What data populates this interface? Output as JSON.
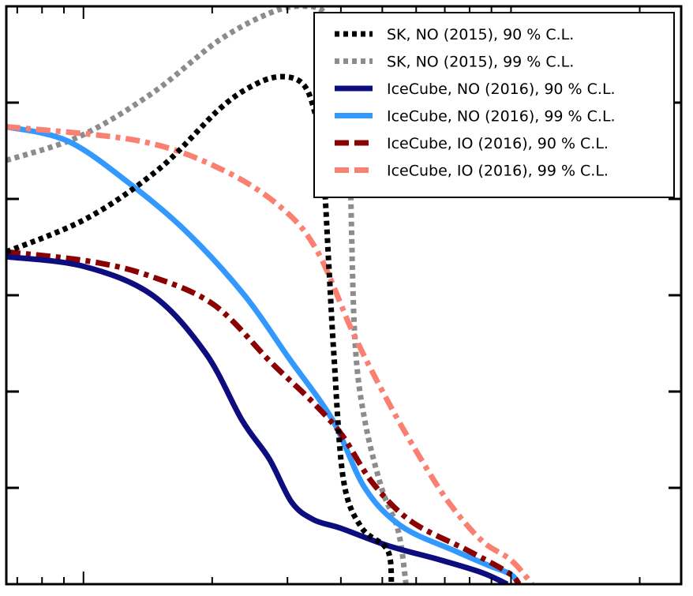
{
  "chart_data": {
    "type": "line",
    "title": "",
    "xlabel": "",
    "ylabel": "",
    "x_scale": "log",
    "xlim": [
      0.0066,
      0.25
    ],
    "ylim": [
      0,
      6
    ],
    "x_tick_labels_visible": [
      "",
      "",
      ""
    ],
    "grid": false,
    "legend_position": "top-right",
    "series": [
      {
        "name": "SK, NO (2015), 90 % C.L.",
        "color": "#000000",
        "style": "dotted",
        "points": [
          [
            0.0066,
            3.45
          ],
          [
            0.0102,
            3.8
          ],
          [
            0.0151,
            4.32
          ],
          [
            0.021,
            4.95
          ],
          [
            0.0255,
            5.2
          ],
          [
            0.0292,
            5.27
          ],
          [
            0.0325,
            5.2
          ],
          [
            0.0345,
            4.95
          ],
          [
            0.0362,
            4.45
          ],
          [
            0.0375,
            3.3
          ],
          [
            0.0385,
            2.4
          ],
          [
            0.0405,
            1.1
          ],
          [
            0.0445,
            0.6
          ],
          [
            0.0505,
            0.4
          ],
          [
            0.0522,
            0.25
          ],
          [
            0.0525,
            0
          ]
        ]
      },
      {
        "name": "SK, NO (2015), 99 % C.L.",
        "color": "#8c8c8c",
        "style": "dotted",
        "points": [
          [
            0.0066,
            4.4
          ],
          [
            0.0098,
            4.65
          ],
          [
            0.0145,
            5.1
          ],
          [
            0.0208,
            5.65
          ],
          [
            0.028,
            5.95
          ],
          [
            0.0335,
            6.0
          ],
          [
            0.037,
            5.92
          ],
          [
            0.0415,
            5.6
          ],
          [
            0.0422,
            4.0
          ],
          [
            0.0432,
            2.5
          ],
          [
            0.0455,
            1.7
          ],
          [
            0.0498,
            1.0
          ],
          [
            0.0545,
            0.55
          ],
          [
            0.0568,
            0
          ]
        ]
      },
      {
        "name": "IceCube, NO (2016), 90 % C.L.",
        "color": "#0d0d80",
        "style": "solid",
        "points": [
          [
            0.0066,
            3.4
          ],
          [
            0.01,
            3.3
          ],
          [
            0.0145,
            3.0
          ],
          [
            0.0193,
            2.4
          ],
          [
            0.0235,
            1.7
          ],
          [
            0.0272,
            1.3
          ],
          [
            0.0307,
            0.85
          ],
          [
            0.0345,
            0.67
          ],
          [
            0.04,
            0.58
          ],
          [
            0.0515,
            0.4
          ],
          [
            0.0685,
            0.25
          ],
          [
            0.0855,
            0.12
          ],
          [
            0.098,
            0
          ]
        ]
      },
      {
        "name": "IceCube, NO (2016), 99 % C.L.",
        "color": "#3399ff",
        "style": "solid",
        "points": [
          [
            0.0066,
            4.75
          ],
          [
            0.0092,
            4.6
          ],
          [
            0.0129,
            4.15
          ],
          [
            0.0175,
            3.65
          ],
          [
            0.0238,
            3.0
          ],
          [
            0.0302,
            2.35
          ],
          [
            0.0383,
            1.7
          ],
          [
            0.0455,
            1.0
          ],
          [
            0.0555,
            0.6
          ],
          [
            0.0735,
            0.35
          ],
          [
            0.088,
            0.2
          ],
          [
            0.1,
            0.1
          ],
          [
            0.104,
            0
          ]
        ]
      },
      {
        "name": "IceCube, IO (2016), 90 % C.L.",
        "color": "#8b0000",
        "style": "dashdot",
        "points": [
          [
            0.0066,
            3.45
          ],
          [
            0.0104,
            3.35
          ],
          [
            0.0143,
            3.2
          ],
          [
            0.0202,
            2.9
          ],
          [
            0.0275,
            2.3
          ],
          [
            0.0342,
            1.9
          ],
          [
            0.0402,
            1.55
          ],
          [
            0.0475,
            1.05
          ],
          [
            0.0585,
            0.65
          ],
          [
            0.0792,
            0.35
          ],
          [
            0.0985,
            0.12
          ],
          [
            0.1045,
            0
          ]
        ]
      },
      {
        "name": "IceCube, IO (2016), 99 % C.L.",
        "color": "#fa8072",
        "style": "dashdot",
        "points": [
          [
            0.0066,
            4.75
          ],
          [
            0.0136,
            4.6
          ],
          [
            0.0212,
            4.3
          ],
          [
            0.0292,
            3.9
          ],
          [
            0.0353,
            3.45
          ],
          [
            0.0428,
            2.6
          ],
          [
            0.0515,
            1.9
          ],
          [
            0.0606,
            1.35
          ],
          [
            0.0715,
            0.85
          ],
          [
            0.0855,
            0.45
          ],
          [
            0.1,
            0.25
          ],
          [
            0.112,
            0
          ]
        ]
      }
    ]
  }
}
